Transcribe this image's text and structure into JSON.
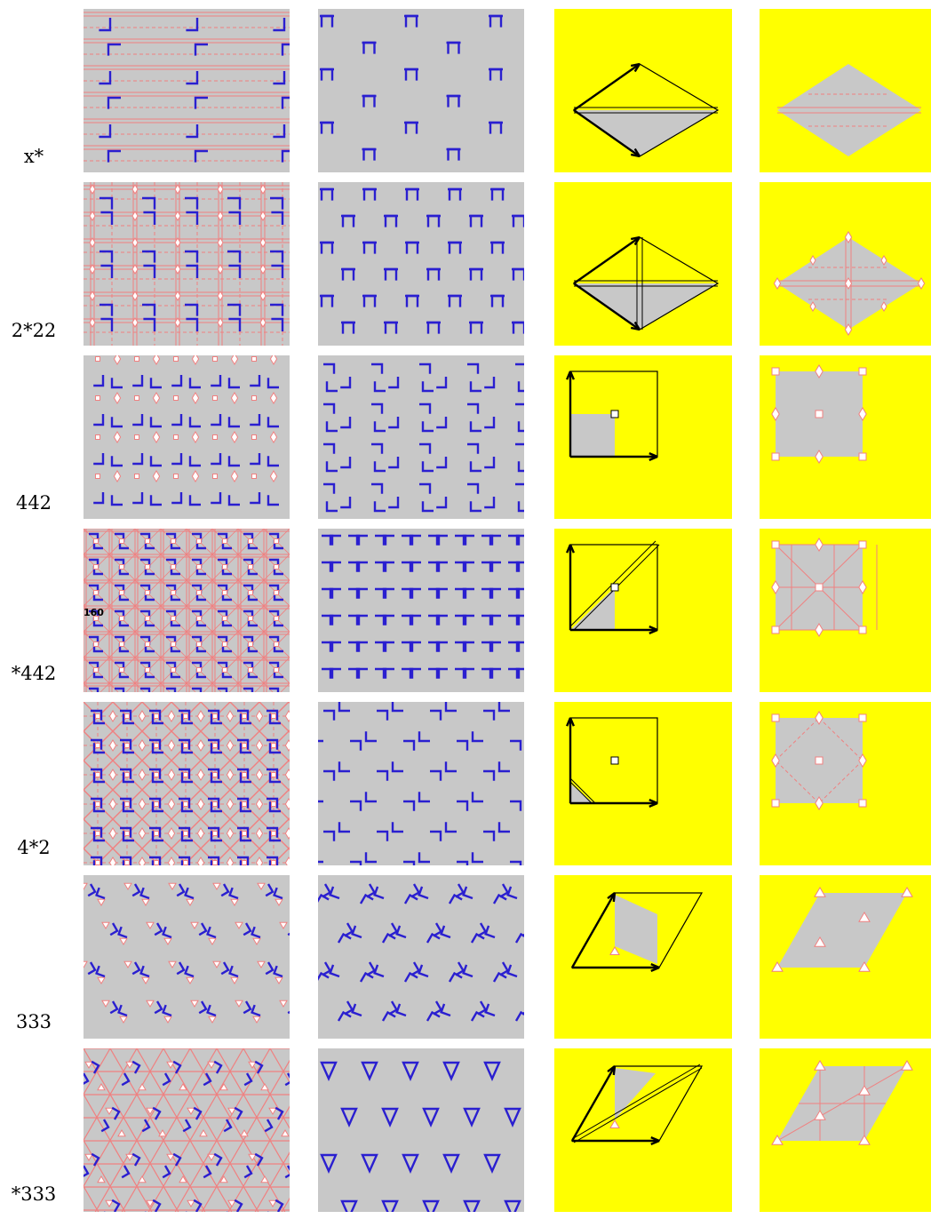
{
  "colors": {
    "tile": "#c8c8c8",
    "motif": "#2a1fd0",
    "mirror": "#f08080",
    "cell_bg": "#ffff00",
    "arrow": "#000000"
  },
  "rows": [
    {
      "label": "x*"
    },
    {
      "label": "2*22"
    },
    {
      "label": "442"
    },
    {
      "label": "*442",
      "tag": "160"
    },
    {
      "label": "4*2"
    },
    {
      "label": "333"
    },
    {
      "label": "*333"
    }
  ]
}
